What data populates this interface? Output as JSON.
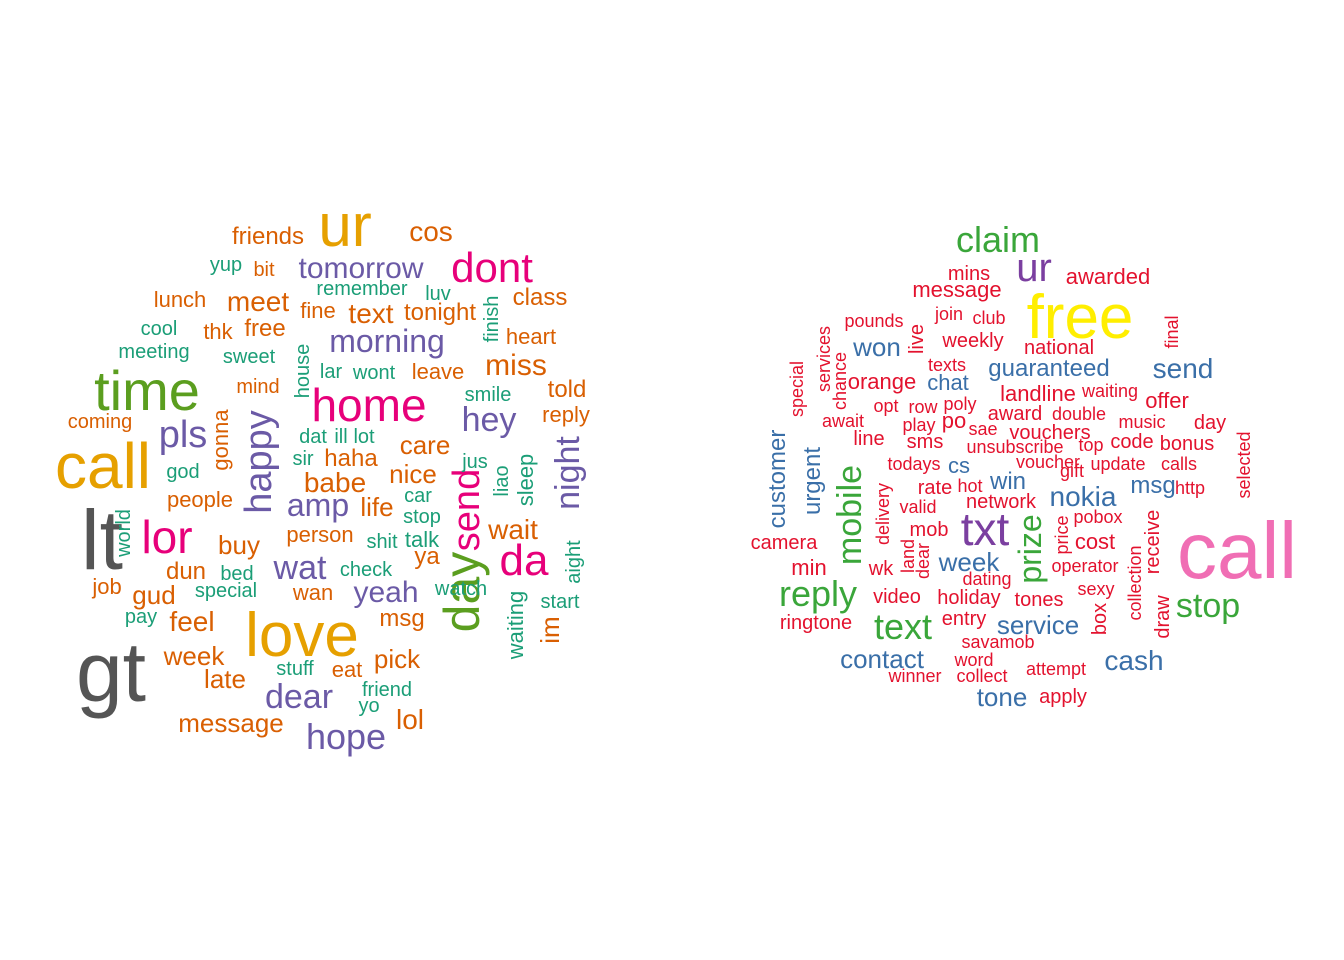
{
  "palette": {
    "ham": {
      "gray": "#555555",
      "gold": "#e6a000",
      "green": "#5b9e1f",
      "pink": "#e7007a",
      "purple": "#6b5aa6",
      "orange": "#d95f02",
      "teal": "#1b9e77"
    },
    "spam": {
      "pink": "#f06eb4",
      "yellow": "#ffee00",
      "green": "#3aa63a",
      "purple": "#7b3fa0",
      "blue": "#3a6fa8",
      "red": "#e3122e"
    }
  },
  "clouds": [
    {
      "id": "ham",
      "words": [
        {
          "text": "lt",
          "color": "gray"
        },
        {
          "text": "gt",
          "color": "gray"
        },
        {
          "text": "call",
          "color": "gold"
        },
        {
          "text": "ur",
          "color": "gold"
        },
        {
          "text": "love",
          "color": "gold"
        },
        {
          "text": "time",
          "color": "green"
        },
        {
          "text": "day",
          "color": "green"
        },
        {
          "text": "home",
          "color": "pink"
        },
        {
          "text": "dont",
          "color": "pink"
        },
        {
          "text": "lor",
          "color": "pink"
        },
        {
          "text": "da",
          "color": "pink"
        },
        {
          "text": "send",
          "color": "pink"
        },
        {
          "text": "tomorrow",
          "color": "purple"
        },
        {
          "text": "morning",
          "color": "purple"
        },
        {
          "text": "hey",
          "color": "purple"
        },
        {
          "text": "happy",
          "color": "purple"
        },
        {
          "text": "pls",
          "color": "purple"
        },
        {
          "text": "night",
          "color": "purple"
        },
        {
          "text": "amp",
          "color": "purple"
        },
        {
          "text": "wat",
          "color": "purple"
        },
        {
          "text": "yeah",
          "color": "purple"
        },
        {
          "text": "dear",
          "color": "purple"
        },
        {
          "text": "hope",
          "color": "purple"
        },
        {
          "text": "friends",
          "color": "orange"
        },
        {
          "text": "cos",
          "color": "orange"
        },
        {
          "text": "bit",
          "color": "orange"
        },
        {
          "text": "class",
          "color": "orange"
        },
        {
          "text": "lunch",
          "color": "orange"
        },
        {
          "text": "meet",
          "color": "orange"
        },
        {
          "text": "fine",
          "color": "orange"
        },
        {
          "text": "text",
          "color": "orange"
        },
        {
          "text": "tonight",
          "color": "orange"
        },
        {
          "text": "heart",
          "color": "orange"
        },
        {
          "text": "thk",
          "color": "orange"
        },
        {
          "text": "free",
          "color": "orange"
        },
        {
          "text": "miss",
          "color": "orange"
        },
        {
          "text": "mind",
          "color": "orange"
        },
        {
          "text": "leave",
          "color": "orange"
        },
        {
          "text": "told",
          "color": "orange"
        },
        {
          "text": "coming",
          "color": "orange"
        },
        {
          "text": "reply",
          "color": "orange"
        },
        {
          "text": "gonna",
          "color": "orange"
        },
        {
          "text": "care",
          "color": "orange"
        },
        {
          "text": "haha",
          "color": "orange"
        },
        {
          "text": "nice",
          "color": "orange"
        },
        {
          "text": "people",
          "color": "orange"
        },
        {
          "text": "babe",
          "color": "orange"
        },
        {
          "text": "life",
          "color": "orange"
        },
        {
          "text": "wait",
          "color": "orange"
        },
        {
          "text": "person",
          "color": "orange"
        },
        {
          "text": "buy",
          "color": "orange"
        },
        {
          "text": "ya",
          "color": "orange"
        },
        {
          "text": "dun",
          "color": "orange"
        },
        {
          "text": "job",
          "color": "orange"
        },
        {
          "text": "gud",
          "color": "orange"
        },
        {
          "text": "wan",
          "color": "orange"
        },
        {
          "text": "feel",
          "color": "orange"
        },
        {
          "text": "msg",
          "color": "orange"
        },
        {
          "text": "im",
          "color": "orange"
        },
        {
          "text": "week",
          "color": "orange"
        },
        {
          "text": "pick",
          "color": "orange"
        },
        {
          "text": "late",
          "color": "orange"
        },
        {
          "text": "eat",
          "color": "orange"
        },
        {
          "text": "message",
          "color": "orange"
        },
        {
          "text": "lol",
          "color": "orange"
        },
        {
          "text": "yup",
          "color": "teal"
        },
        {
          "text": "remember",
          "color": "teal"
        },
        {
          "text": "luv",
          "color": "teal"
        },
        {
          "text": "finish",
          "color": "teal"
        },
        {
          "text": "cool",
          "color": "teal"
        },
        {
          "text": "meeting",
          "color": "teal"
        },
        {
          "text": "sweet",
          "color": "teal"
        },
        {
          "text": "house",
          "color": "teal"
        },
        {
          "text": "lar",
          "color": "teal"
        },
        {
          "text": "wont",
          "color": "teal"
        },
        {
          "text": "smile",
          "color": "teal"
        },
        {
          "text": "dat",
          "color": "teal"
        },
        {
          "text": "ill",
          "color": "teal"
        },
        {
          "text": "lot",
          "color": "teal"
        },
        {
          "text": "god",
          "color": "teal"
        },
        {
          "text": "sir",
          "color": "teal"
        },
        {
          "text": "jus",
          "color": "teal"
        },
        {
          "text": "liao",
          "color": "teal"
        },
        {
          "text": "sleep",
          "color": "teal"
        },
        {
          "text": "car",
          "color": "teal"
        },
        {
          "text": "stop",
          "color": "teal"
        },
        {
          "text": "world",
          "color": "teal"
        },
        {
          "text": "shit",
          "color": "teal"
        },
        {
          "text": "talk",
          "color": "teal"
        },
        {
          "text": "aight",
          "color": "teal"
        },
        {
          "text": "bed",
          "color": "teal"
        },
        {
          "text": "check",
          "color": "teal"
        },
        {
          "text": "special",
          "color": "teal"
        },
        {
          "text": "watch",
          "color": "teal"
        },
        {
          "text": "start",
          "color": "teal"
        },
        {
          "text": "pay",
          "color": "teal"
        },
        {
          "text": "waiting",
          "color": "teal"
        },
        {
          "text": "stuff",
          "color": "teal"
        },
        {
          "text": "friend",
          "color": "teal"
        },
        {
          "text": "yo",
          "color": "teal"
        }
      ]
    },
    {
      "id": "spam",
      "words": [
        {
          "text": "call",
          "color": "pink"
        },
        {
          "text": "free",
          "color": "yellow"
        },
        {
          "text": "claim",
          "color": "green"
        },
        {
          "text": "ur",
          "color": "purple"
        },
        {
          "text": "txt",
          "color": "purple"
        },
        {
          "text": "mobile",
          "color": "green"
        },
        {
          "text": "reply",
          "color": "green"
        },
        {
          "text": "text",
          "color": "green"
        },
        {
          "text": "stop",
          "color": "green"
        },
        {
          "text": "prize",
          "color": "green"
        },
        {
          "text": "won",
          "color": "blue"
        },
        {
          "text": "send",
          "color": "blue"
        },
        {
          "text": "guaranteed",
          "color": "blue"
        },
        {
          "text": "chat",
          "color": "blue"
        },
        {
          "text": "nokia",
          "color": "blue"
        },
        {
          "text": "msg",
          "color": "blue"
        },
        {
          "text": "win",
          "color": "blue"
        },
        {
          "text": "cs",
          "color": "blue"
        },
        {
          "text": "customer",
          "color": "blue"
        },
        {
          "text": "urgent",
          "color": "blue"
        },
        {
          "text": "week",
          "color": "blue"
        },
        {
          "text": "service",
          "color": "blue"
        },
        {
          "text": "contact",
          "color": "blue"
        },
        {
          "text": "cash",
          "color": "blue"
        },
        {
          "text": "tone",
          "color": "blue"
        },
        {
          "text": "mins",
          "color": "red"
        },
        {
          "text": "awarded",
          "color": "red"
        },
        {
          "text": "message",
          "color": "red"
        },
        {
          "text": "pounds",
          "color": "red"
        },
        {
          "text": "join",
          "color": "red"
        },
        {
          "text": "club",
          "color": "red"
        },
        {
          "text": "final",
          "color": "red"
        },
        {
          "text": "services",
          "color": "red"
        },
        {
          "text": "live",
          "color": "red"
        },
        {
          "text": "weekly",
          "color": "red"
        },
        {
          "text": "national",
          "color": "red"
        },
        {
          "text": "special",
          "color": "red"
        },
        {
          "text": "chance",
          "color": "red"
        },
        {
          "text": "texts",
          "color": "red"
        },
        {
          "text": "orange",
          "color": "red"
        },
        {
          "text": "landline",
          "color": "red"
        },
        {
          "text": "waiting",
          "color": "red"
        },
        {
          "text": "opt",
          "color": "red"
        },
        {
          "text": "row",
          "color": "red"
        },
        {
          "text": "poly",
          "color": "red"
        },
        {
          "text": "offer",
          "color": "red"
        },
        {
          "text": "await",
          "color": "red"
        },
        {
          "text": "po",
          "color": "red"
        },
        {
          "text": "award",
          "color": "red"
        },
        {
          "text": "double",
          "color": "red"
        },
        {
          "text": "music",
          "color": "red"
        },
        {
          "text": "day",
          "color": "red"
        },
        {
          "text": "line",
          "color": "red"
        },
        {
          "text": "play",
          "color": "red"
        },
        {
          "text": "sae",
          "color": "red"
        },
        {
          "text": "vouchers",
          "color": "red"
        },
        {
          "text": "sms",
          "color": "red"
        },
        {
          "text": "unsubscribe",
          "color": "red"
        },
        {
          "text": "top",
          "color": "red"
        },
        {
          "text": "code",
          "color": "red"
        },
        {
          "text": "bonus",
          "color": "red"
        },
        {
          "text": "selected",
          "color": "red"
        },
        {
          "text": "todays",
          "color": "red"
        },
        {
          "text": "voucher",
          "color": "red"
        },
        {
          "text": "gift",
          "color": "red"
        },
        {
          "text": "update",
          "color": "red"
        },
        {
          "text": "calls",
          "color": "red"
        },
        {
          "text": "rate",
          "color": "red"
        },
        {
          "text": "hot",
          "color": "red"
        },
        {
          "text": "http",
          "color": "red"
        },
        {
          "text": "delivery",
          "color": "red"
        },
        {
          "text": "valid",
          "color": "red"
        },
        {
          "text": "network",
          "color": "red"
        },
        {
          "text": "pobox",
          "color": "red"
        },
        {
          "text": "mob",
          "color": "red"
        },
        {
          "text": "receive",
          "color": "red"
        },
        {
          "text": "camera",
          "color": "red"
        },
        {
          "text": "price",
          "color": "red"
        },
        {
          "text": "cost",
          "color": "red"
        },
        {
          "text": "land",
          "color": "red"
        },
        {
          "text": "dear",
          "color": "red"
        },
        {
          "text": "min",
          "color": "red"
        },
        {
          "text": "wk",
          "color": "red"
        },
        {
          "text": "operator",
          "color": "red"
        },
        {
          "text": "collection",
          "color": "red"
        },
        {
          "text": "dating",
          "color": "red"
        },
        {
          "text": "sexy",
          "color": "red"
        },
        {
          "text": "video",
          "color": "red"
        },
        {
          "text": "holiday",
          "color": "red"
        },
        {
          "text": "tones",
          "color": "red"
        },
        {
          "text": "draw",
          "color": "red"
        },
        {
          "text": "box",
          "color": "red"
        },
        {
          "text": "ringtone",
          "color": "red"
        },
        {
          "text": "entry",
          "color": "red"
        },
        {
          "text": "savamob",
          "color": "red"
        },
        {
          "text": "word",
          "color": "red"
        },
        {
          "text": "attempt",
          "color": "red"
        },
        {
          "text": "winner",
          "color": "red"
        },
        {
          "text": "collect",
          "color": "red"
        },
        {
          "text": "apply",
          "color": "red"
        }
      ]
    }
  ]
}
